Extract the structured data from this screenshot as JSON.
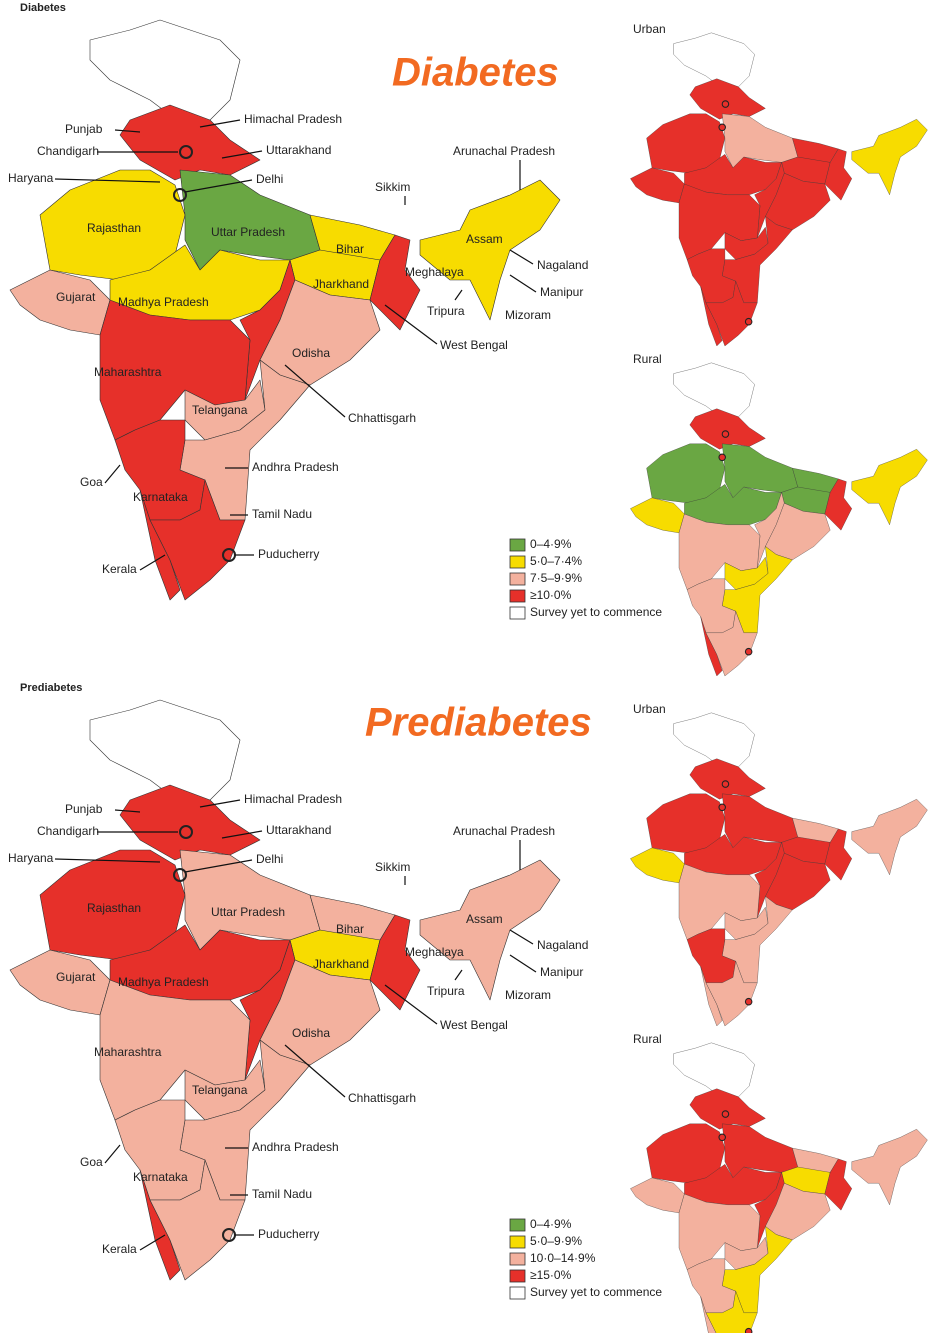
{
  "panels": [
    {
      "header": "Diabetes",
      "title": "Diabetes",
      "labels": [
        "Himachal Pradesh",
        "Punjab",
        "Chandigarh",
        "Uttarakhand",
        "Haryana",
        "Delhi",
        "Rajasthan",
        "Uttar Pradesh",
        "Bihar",
        "Sikkim",
        "Arunachal Pradesh",
        "Assam",
        "Meghalaya",
        "Nagaland",
        "Jharkhand",
        "Madhya Pradesh",
        "Gujarat",
        "Manipur",
        "Tripura",
        "Mizoram",
        "West Bengal",
        "Odisha",
        "Maharashtra",
        "Chhattisgarh",
        "Telangana",
        "Andhra Pradesh",
        "Goa",
        "Karnataka",
        "Tamil Nadu",
        "Puducherry",
        "Kerala"
      ],
      "legend": [
        {
          "label": "0–4·9%",
          "color": "#6aa743"
        },
        {
          "label": "5·0–7·4%",
          "color": "#f7dc00"
        },
        {
          "label": "7·5–9·9%",
          "color": "#f3b19e"
        },
        {
          "label": "≥10·0%",
          "color": "#e6302a"
        },
        {
          "label": "Survey yet to commence",
          "color": "#ffffff"
        }
      ],
      "insets": [
        "Urban",
        "Rural"
      ]
    },
    {
      "header": "Prediabetes",
      "title": "Prediabetes",
      "labels": [
        "Himachal Pradesh",
        "Punjab",
        "Chandigarh",
        "Uttarakhand",
        "Haryana",
        "Delhi",
        "Rajasthan",
        "Uttar Pradesh",
        "Bihar",
        "Sikkim",
        "Arunachal Pradesh",
        "Assam",
        "Meghalaya",
        "Nagaland",
        "Jharkhand",
        "Madhya Pradesh",
        "Gujarat",
        "Manipur",
        "Tripura",
        "Mizoram",
        "West Bengal",
        "Odisha",
        "Maharashtra",
        "Chhattisgarh",
        "Telangana",
        "Andhra Pradesh",
        "Goa",
        "Karnataka",
        "Tamil Nadu",
        "Puducherry",
        "Kerala"
      ],
      "legend": [
        {
          "label": "0–4·9%",
          "color": "#6aa743"
        },
        {
          "label": "5·0–9·9%",
          "color": "#f7dc00"
        },
        {
          "label": "10·0–14·9%",
          "color": "#f3b19e"
        },
        {
          "label": "≥15·0%",
          "color": "#e6302a"
        },
        {
          "label": "Survey yet to commence",
          "color": "#ffffff"
        }
      ],
      "insets": [
        "Urban",
        "Rural"
      ]
    }
  ]
}
